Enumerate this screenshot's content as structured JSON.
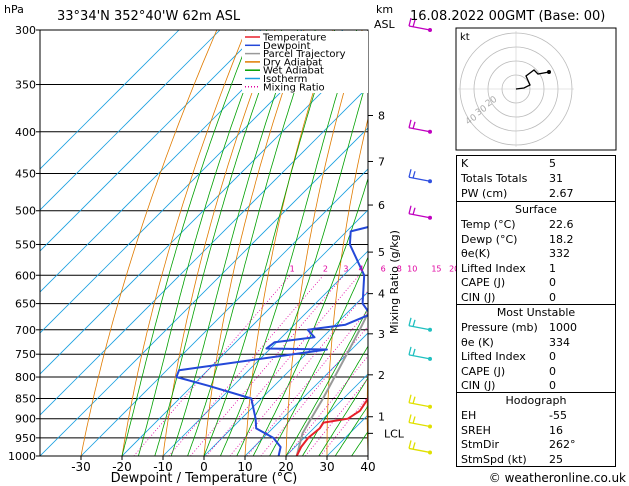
{
  "header": {
    "location": "33°34'N  352°40'W  62m  ASL",
    "date": "16.08.2022  00GMT  (Base: 00)",
    "hpa_label": "hPa",
    "km_label": "km",
    "asl_label": "ASL",
    "mixing_axis_label": "Mixing Ratio (g/kg)",
    "x_axis_label": "Dewpoint / Temperature (°C)",
    "footer": "© weatheronline.co.uk"
  },
  "legend": [
    {
      "label": "Temperature",
      "color": "#e8202a",
      "style": "solid"
    },
    {
      "label": "Dewpoint",
      "color": "#2448d8",
      "style": "solid"
    },
    {
      "label": "Parcel Trajectory",
      "color": "#999999",
      "style": "solid"
    },
    {
      "label": "Dry Adiabat",
      "color": "#e07b00",
      "style": "solid"
    },
    {
      "label": "Wet Adiabat",
      "color": "#00a000",
      "style": "solid"
    },
    {
      "label": "Isotherm",
      "color": "#1aa0e0",
      "style": "solid"
    },
    {
      "label": "Mixing Ratio",
      "color": "#e000a0",
      "style": "dotted"
    }
  ],
  "colors": {
    "temperature": "#e8202a",
    "dewpoint": "#2448d8",
    "parcel": "#999999",
    "dry_adiabat": "#e07b00",
    "wet_adiabat": "#00a000",
    "isotherm": "#1aa0e0",
    "mixing_ratio": "#e000a0",
    "wind_upper": "#c000c0",
    "wind_mid": "#20c0c0",
    "wind_low": "#e0e000"
  },
  "chart_data": {
    "type": "skew-t",
    "pressure_levels": [
      300,
      350,
      400,
      450,
      500,
      550,
      600,
      650,
      700,
      750,
      800,
      850,
      900,
      950,
      1000
    ],
    "pressure_labels": [
      "300",
      "350",
      "400",
      "450",
      "500",
      "550",
      "600",
      "650",
      "700",
      "750",
      "800",
      "850",
      "900",
      "950",
      "1000"
    ],
    "x_ticks": [
      -30,
      -20,
      -10,
      0,
      10,
      20,
      30,
      40
    ],
    "x_tick_labels": [
      "-30",
      "-20",
      "-10",
      "0",
      "10",
      "20",
      "30",
      "40"
    ],
    "xlim": [
      -40,
      40
    ],
    "ylim": [
      1000,
      300
    ],
    "y_scale": "log",
    "mixing_ratios": [
      1,
      2,
      3,
      4,
      6,
      8,
      10,
      15,
      20,
      25
    ],
    "mixing_ratio_labels": [
      "1",
      "2",
      "3",
      "4",
      "6",
      "8",
      "10",
      "15",
      "20",
      "25"
    ],
    "km_levels": [
      {
        "p": 382,
        "label": "8"
      },
      {
        "p": 435,
        "label": "7"
      },
      {
        "p": 492,
        "label": "6"
      },
      {
        "p": 562,
        "label": "5"
      },
      {
        "p": 632,
        "label": "4"
      },
      {
        "p": 708,
        "label": "3"
      },
      {
        "p": 795,
        "label": "2"
      },
      {
        "p": 895,
        "label": "1"
      },
      {
        "p": 938,
        "label": "LCL"
      }
    ],
    "temperature": [
      {
        "p": 1000,
        "t": 22.6
      },
      {
        "p": 975,
        "t": 21.5
      },
      {
        "p": 950,
        "t": 21.0
      },
      {
        "p": 925,
        "t": 21.5
      },
      {
        "p": 910,
        "t": 21.0
      },
      {
        "p": 900,
        "t": 26.0
      },
      {
        "p": 880,
        "t": 27.0
      },
      {
        "p": 850,
        "t": 26.0
      },
      {
        "p": 825,
        "t": 27.0
      },
      {
        "p": 800,
        "t": 27.0
      },
      {
        "p": 775,
        "t": 25.5
      },
      {
        "p": 750,
        "t": 23.0
      },
      {
        "p": 700,
        "t": 17.0
      },
      {
        "p": 650,
        "t": 13.5
      },
      {
        "p": 600,
        "t": 9.5
      },
      {
        "p": 550,
        "t": 4.0
      },
      {
        "p": 500,
        "t": -1.5
      },
      {
        "p": 450,
        "t": -6.5
      },
      {
        "p": 400,
        "t": -13.0
      },
      {
        "p": 350,
        "t": -20.5
      },
      {
        "p": 300,
        "t": -30.0
      }
    ],
    "dewpoint": [
      {
        "p": 1000,
        "t": 18.2
      },
      {
        "p": 975,
        "t": 16.5
      },
      {
        "p": 950,
        "t": 12.5
      },
      {
        "p": 925,
        "t": 6.0
      },
      {
        "p": 900,
        "t": 3.5
      },
      {
        "p": 850,
        "t": -2.5
      },
      {
        "p": 820,
        "t": -16.0
      },
      {
        "p": 800,
        "t": -26.0
      },
      {
        "p": 785,
        "t": -27.0
      },
      {
        "p": 740,
        "t": 4.0
      },
      {
        "p": 738,
        "t": -11.0
      },
      {
        "p": 725,
        "t": -10.5
      },
      {
        "p": 715,
        "t": -2.0
      },
      {
        "p": 700,
        "t": -5.5
      },
      {
        "p": 690,
        "t": 2.5
      },
      {
        "p": 670,
        "t": 6.0
      },
      {
        "p": 650,
        "t": 1.5
      },
      {
        "p": 600,
        "t": -5.0
      },
      {
        "p": 550,
        "t": -16.0
      },
      {
        "p": 530,
        "t": -19.0
      },
      {
        "p": 520,
        "t": -14.0
      },
      {
        "p": 505,
        "t": -3.5
      },
      {
        "p": 500,
        "t": -3.0
      },
      {
        "p": 450,
        "t": -9.0
      },
      {
        "p": 400,
        "t": -15.5
      },
      {
        "p": 350,
        "t": -23.0
      },
      {
        "p": 300,
        "t": -33.0
      }
    ],
    "parcel": [
      {
        "p": 1000,
        "t": 22.6
      },
      {
        "p": 938,
        "t": 18.5
      },
      {
        "p": 900,
        "t": 17.0
      },
      {
        "p": 850,
        "t": 15.0
      },
      {
        "p": 800,
        "t": 12.6
      },
      {
        "p": 750,
        "t": 10.0
      },
      {
        "p": 700,
        "t": 7.2
      },
      {
        "p": 650,
        "t": 4.0
      },
      {
        "p": 600,
        "t": 0.5
      },
      {
        "p": 550,
        "t": -3.5
      },
      {
        "p": 500,
        "t": -8.0
      },
      {
        "p": 450,
        "t": -13.5
      },
      {
        "p": 400,
        "t": -19.5
      },
      {
        "p": 350,
        "t": -27.0
      },
      {
        "p": 300,
        "t": -35.5
      }
    ],
    "wind_barbs": [
      {
        "p": 300,
        "color": "upper"
      },
      {
        "p": 400,
        "color": "upper"
      },
      {
        "p": 460,
        "color": "blue"
      },
      {
        "p": 510,
        "color": "upper"
      },
      {
        "p": 700,
        "color": "mid"
      },
      {
        "p": 760,
        "color": "mid"
      },
      {
        "p": 870,
        "color": "low"
      },
      {
        "p": 920,
        "color": "low"
      },
      {
        "p": 990,
        "color": "low"
      }
    ]
  },
  "hodograph": {
    "unit_label": "kt",
    "ring_labels": [
      "20",
      "30",
      "40"
    ]
  },
  "indices": {
    "rows": [
      {
        "label": "K",
        "value": "5"
      },
      {
        "label": "Totals Totals",
        "value": "31"
      },
      {
        "label": "PW (cm)",
        "value": "2.67"
      }
    ]
  },
  "surface": {
    "title": "Surface",
    "rows": [
      {
        "label": "Temp (°C)",
        "value": "22.6"
      },
      {
        "label": "Dewp (°C)",
        "value": "18.2"
      },
      {
        "label": "θe(K)",
        "value": "332"
      },
      {
        "label": "Lifted Index",
        "value": "1"
      },
      {
        "label": "CAPE (J)",
        "value": "0"
      },
      {
        "label": "CIN (J)",
        "value": "0"
      }
    ]
  },
  "most_unstable": {
    "title": "Most Unstable",
    "rows": [
      {
        "label": "Pressure (mb)",
        "value": "1000"
      },
      {
        "label": "θe (K)",
        "value": "334"
      },
      {
        "label": "Lifted Index",
        "value": "0"
      },
      {
        "label": "CAPE (J)",
        "value": "0"
      },
      {
        "label": "CIN (J)",
        "value": "0"
      }
    ]
  },
  "hodo_table": {
    "title": "Hodograph",
    "rows": [
      {
        "label": "EH",
        "value": "-55"
      },
      {
        "label": "SREH",
        "value": "16"
      },
      {
        "label": "StmDir",
        "value": "262°"
      },
      {
        "label": "StmSpd (kt)",
        "value": "25"
      }
    ]
  }
}
